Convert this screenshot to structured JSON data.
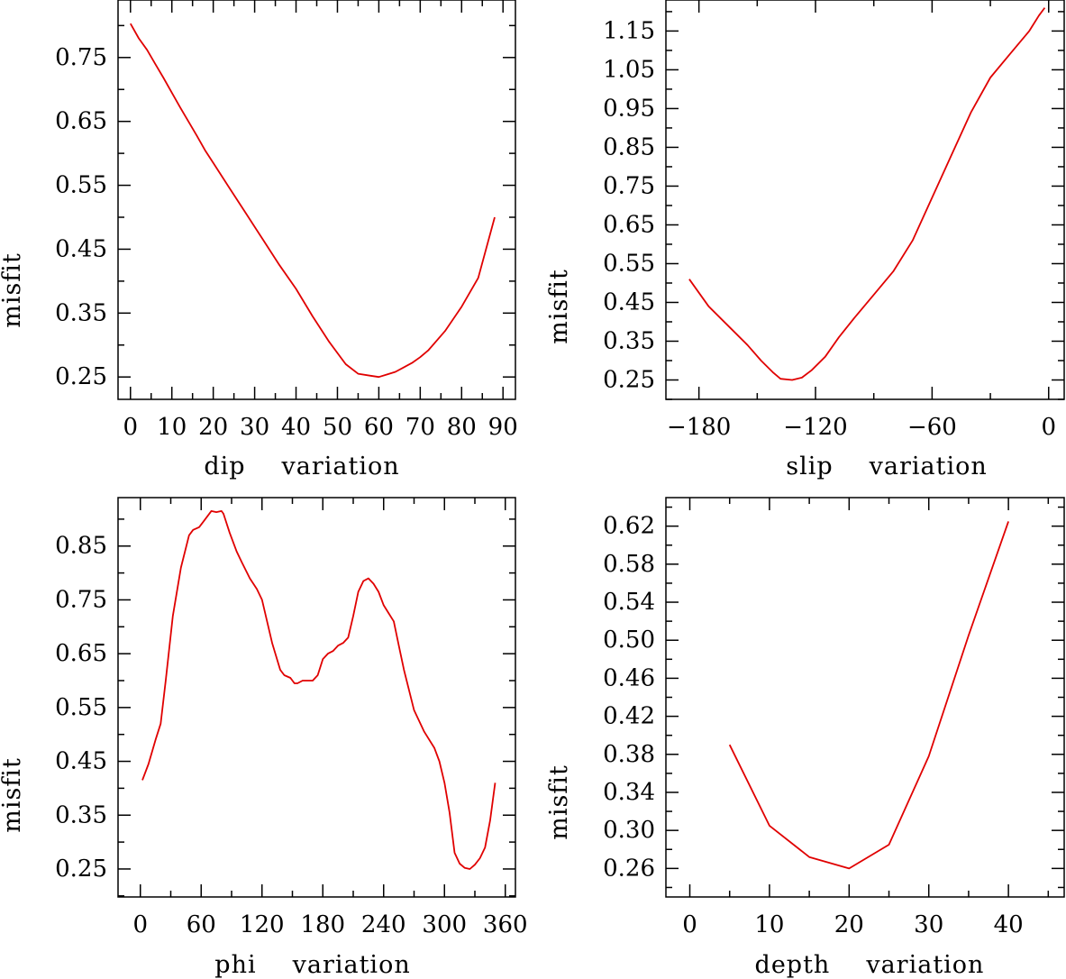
{
  "colors": {
    "line": "#e00000",
    "axis": "#000000"
  },
  "chart_data": [
    {
      "type": "line",
      "xlabel": "dip variation",
      "xlabel_words": [
        "dip",
        "variation"
      ],
      "ylabel": "misfit",
      "xlim": [
        -3,
        93
      ],
      "ylim": [
        0.215,
        0.84
      ],
      "xticks": [
        0,
        10,
        20,
        30,
        40,
        50,
        60,
        70,
        80,
        90
      ],
      "xtick_labels": [
        "0",
        "10",
        "20",
        "30",
        "40",
        "50",
        "60",
        "70",
        "80",
        "90"
      ],
      "yticks": [
        0.25,
        0.35,
        0.45,
        0.55,
        0.65,
        0.75
      ],
      "ytick_labels": [
        "0.25",
        "0.35",
        "0.45",
        "0.55",
        "0.65",
        "0.75"
      ],
      "series": [
        {
          "name": "dip",
          "x": [
            0,
            2,
            4,
            6,
            8,
            10,
            12,
            14,
            16,
            18,
            20,
            24,
            28,
            32,
            36,
            40,
            44,
            48,
            52,
            55,
            58,
            60,
            62,
            64,
            66,
            68,
            70,
            72,
            76,
            80,
            84,
            88
          ],
          "y": [
            0.803,
            0.78,
            0.762,
            0.74,
            0.718,
            0.695,
            0.672,
            0.65,
            0.628,
            0.605,
            0.585,
            0.545,
            0.505,
            0.465,
            0.425,
            0.388,
            0.345,
            0.305,
            0.27,
            0.255,
            0.252,
            0.25,
            0.254,
            0.258,
            0.265,
            0.272,
            0.281,
            0.292,
            0.322,
            0.36,
            0.405,
            0.5
          ]
        }
      ]
    },
    {
      "type": "line",
      "xlabel": "slip variation",
      "xlabel_words": [
        "slip",
        "variation"
      ],
      "ylabel": "misfit",
      "xlim": [
        -197,
        8
      ],
      "ylim": [
        0.2,
        1.23
      ],
      "xticks": [
        -180,
        -120,
        -60,
        0
      ],
      "xtick_labels": [
        "−180",
        "−120",
        "−60",
        "0"
      ],
      "yticks": [
        0.25,
        0.35,
        0.45,
        0.55,
        0.65,
        0.75,
        0.85,
        0.95,
        1.05,
        1.15
      ],
      "ytick_labels": [
        "0.25",
        "0.35",
        "0.45",
        "0.55",
        "0.65",
        "0.75",
        "0.85",
        "0.95",
        "1.05",
        "1.15"
      ],
      "series": [
        {
          "name": "slip",
          "x": [
            -185,
            -175,
            -165,
            -155,
            -148,
            -142,
            -138,
            -132,
            -127,
            -122,
            -115,
            -108,
            -100,
            -90,
            -80,
            -70,
            -60,
            -50,
            -40,
            -30,
            -20,
            -10,
            -5,
            -2
          ],
          "y": [
            0.51,
            0.44,
            0.39,
            0.34,
            0.3,
            0.27,
            0.253,
            0.25,
            0.256,
            0.275,
            0.31,
            0.36,
            0.41,
            0.47,
            0.53,
            0.61,
            0.72,
            0.83,
            0.94,
            1.03,
            1.09,
            1.15,
            1.19,
            1.21
          ]
        }
      ]
    },
    {
      "type": "line",
      "xlabel": "phi variation",
      "xlabel_words": [
        "phi",
        "variation"
      ],
      "ylabel": "misfit",
      "xlim": [
        -22,
        370
      ],
      "ylim": [
        0.198,
        0.94
      ],
      "xticks": [
        0,
        60,
        120,
        180,
        240,
        300,
        360
      ],
      "xtick_labels": [
        "0",
        "60",
        "120",
        "180",
        "240",
        "300",
        "360"
      ],
      "yticks": [
        0.25,
        0.35,
        0.45,
        0.55,
        0.65,
        0.75,
        0.85
      ],
      "ytick_labels": [
        "0.25",
        "0.35",
        "0.45",
        "0.55",
        "0.65",
        "0.75",
        "0.85"
      ],
      "series": [
        {
          "name": "phi",
          "x": [
            2,
            8,
            15,
            20,
            25,
            32,
            40,
            48,
            52,
            58,
            62,
            70,
            75,
            80,
            82,
            88,
            95,
            100,
            108,
            115,
            120,
            125,
            130,
            138,
            142,
            148,
            152,
            155,
            160,
            165,
            170,
            175,
            180,
            185,
            190,
            195,
            200,
            205,
            210,
            215,
            220,
            225,
            230,
            235,
            240,
            245,
            250,
            255,
            260,
            270,
            280,
            290,
            295,
            300,
            305,
            310,
            315,
            320,
            325,
            330,
            335,
            340,
            345,
            350
          ],
          "y": [
            0.415,
            0.445,
            0.49,
            0.52,
            0.6,
            0.72,
            0.81,
            0.87,
            0.88,
            0.885,
            0.895,
            0.915,
            0.913,
            0.915,
            0.91,
            0.875,
            0.84,
            0.82,
            0.79,
            0.77,
            0.75,
            0.71,
            0.67,
            0.62,
            0.61,
            0.605,
            0.595,
            0.595,
            0.6,
            0.6,
            0.6,
            0.61,
            0.64,
            0.65,
            0.655,
            0.665,
            0.67,
            0.68,
            0.72,
            0.765,
            0.785,
            0.79,
            0.78,
            0.765,
            0.74,
            0.725,
            0.71,
            0.665,
            0.62,
            0.545,
            0.505,
            0.475,
            0.45,
            0.41,
            0.355,
            0.28,
            0.26,
            0.252,
            0.25,
            0.258,
            0.27,
            0.29,
            0.34,
            0.41
          ]
        }
      ]
    },
    {
      "type": "line",
      "xlabel": "depth variation",
      "xlabel_words": [
        "depth",
        "variation"
      ],
      "ylabel": "misfit",
      "xlim": [
        -3,
        47
      ],
      "ylim": [
        0.23,
        0.65
      ],
      "xticks": [
        0,
        10,
        20,
        30,
        40
      ],
      "xtick_labels": [
        "0",
        "10",
        "20",
        "30",
        "40"
      ],
      "yticks": [
        0.26,
        0.3,
        0.34,
        0.38,
        0.42,
        0.46,
        0.5,
        0.54,
        0.58,
        0.62
      ],
      "ytick_labels": [
        "0.26",
        "0.30",
        "0.34",
        "0.38",
        "0.42",
        "0.46",
        "0.50",
        "0.54",
        "0.58",
        "0.62"
      ],
      "series": [
        {
          "name": "depth",
          "x": [
            5,
            10,
            15,
            20,
            25,
            30,
            35,
            40
          ],
          "y": [
            0.39,
            0.305,
            0.272,
            0.26,
            0.285,
            0.378,
            0.505,
            0.625
          ]
        }
      ]
    }
  ]
}
